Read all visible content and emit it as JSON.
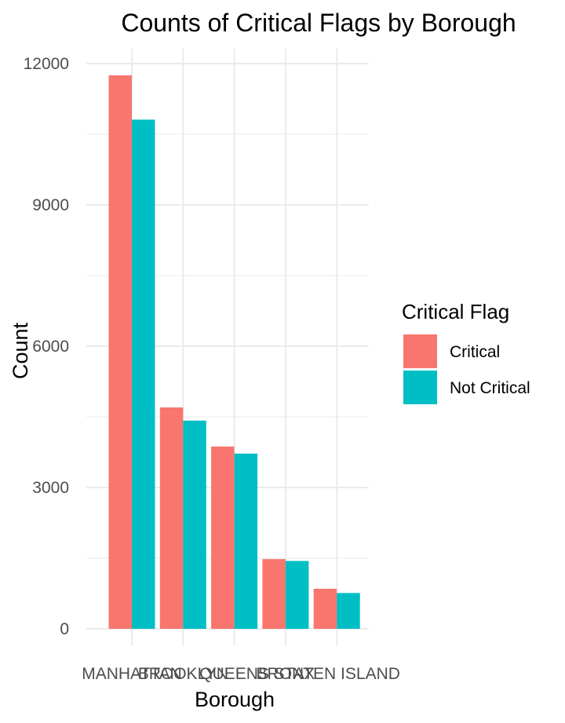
{
  "chart_data": {
    "type": "bar",
    "title": "Counts of Critical Flags by Borough",
    "xlabel": "Borough",
    "ylabel": "Count",
    "categories": [
      "MANHATTAN",
      "BROOKLYN",
      "QUEENS",
      "BRONX",
      "STATEN ISLAND"
    ],
    "series": [
      {
        "name": "Critical",
        "values": [
          11750,
          4700,
          3870,
          1480,
          850
        ],
        "color": "#F8766D"
      },
      {
        "name": "Not Critical",
        "values": [
          10810,
          4420,
          3720,
          1440,
          760
        ],
        "color": "#00BFC4"
      }
    ],
    "ylim": [
      0,
      12000
    ],
    "yticks": [
      0,
      3000,
      6000,
      9000,
      12000
    ],
    "grid": true,
    "legend": {
      "title": "Critical Flag",
      "position": "right"
    }
  }
}
